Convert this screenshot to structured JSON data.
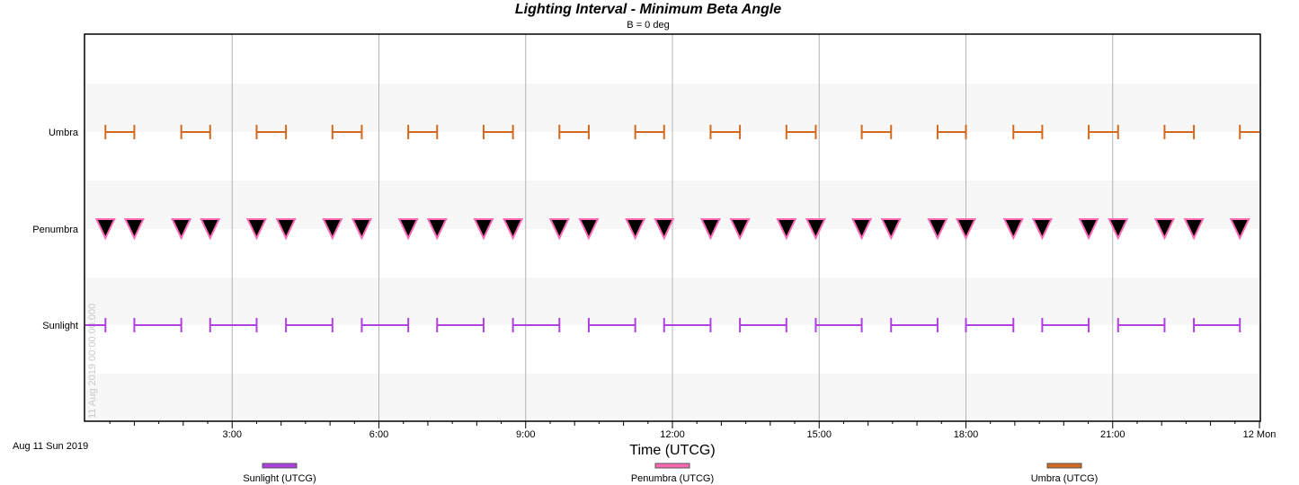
{
  "chart_data": {
    "type": "interval",
    "title": "Lighting Interval - Minimum Beta Angle",
    "subtitle": "B = 0 deg",
    "xlabel": "Time (UTCG)",
    "x_start_label": "Aug 11 Sun 2019",
    "x_end_label": "12 Mon",
    "epoch_label": "11 Aug 2019 00:00:00.000",
    "x_range_hours": [
      0,
      24
    ],
    "x_ticks": [
      {
        "hour": 3,
        "label": "3:00"
      },
      {
        "hour": 6,
        "label": "6:00"
      },
      {
        "hour": 9,
        "label": "9:00"
      },
      {
        "hour": 12,
        "label": "12:00"
      },
      {
        "hour": 15,
        "label": "15:00"
      },
      {
        "hour": 18,
        "label": "18:00"
      },
      {
        "hour": 21,
        "label": "21:00"
      },
      {
        "hour": 24,
        "label": "12 Mon"
      }
    ],
    "rows": [
      "Umbra",
      "Penumbra",
      "Sunlight"
    ],
    "series": [
      {
        "name": "Umbra",
        "legend": "Umbra (UTCG)",
        "color": "#d2691e",
        "intervals": [
          [
            0.41,
            1.0
          ],
          [
            1.96,
            2.55
          ],
          [
            3.5,
            4.1
          ],
          [
            5.05,
            5.65
          ],
          [
            6.6,
            7.19
          ],
          [
            8.14,
            8.74
          ],
          [
            9.69,
            10.29
          ],
          [
            11.24,
            11.83
          ],
          [
            12.78,
            13.38
          ],
          [
            14.33,
            14.93
          ],
          [
            15.87,
            16.47
          ],
          [
            17.42,
            18.0
          ],
          [
            18.97,
            19.56
          ],
          [
            20.51,
            21.11
          ],
          [
            22.06,
            22.66
          ],
          [
            23.6,
            24.0
          ]
        ]
      },
      {
        "name": "Penumbra",
        "legend": "Penumbra (UTCG)",
        "color": "#ff69b4",
        "events": [
          0.41,
          1.0,
          1.96,
          2.55,
          3.5,
          4.1,
          5.05,
          5.65,
          6.6,
          7.19,
          8.14,
          8.74,
          9.69,
          10.29,
          11.24,
          11.83,
          12.78,
          13.38,
          14.33,
          14.93,
          15.87,
          16.47,
          17.42,
          18.0,
          18.97,
          19.56,
          20.51,
          21.11,
          22.06,
          22.66,
          23.6
        ]
      },
      {
        "name": "Sunlight",
        "legend": "Sunlight (UTCG)",
        "color": "#b040e0",
        "intervals": [
          [
            0.0,
            0.41
          ],
          [
            1.0,
            1.96
          ],
          [
            2.55,
            3.5
          ],
          [
            4.1,
            5.05
          ],
          [
            5.65,
            6.6
          ],
          [
            7.19,
            8.14
          ],
          [
            8.74,
            9.69
          ],
          [
            10.29,
            11.24
          ],
          [
            11.83,
            12.78
          ],
          [
            13.38,
            14.33
          ],
          [
            14.93,
            15.87
          ],
          [
            16.47,
            17.42
          ],
          [
            18.0,
            18.97
          ],
          [
            19.56,
            20.51
          ],
          [
            21.11,
            22.06
          ],
          [
            22.66,
            23.6
          ]
        ]
      }
    ],
    "grid": true,
    "legend_position": "bottom"
  }
}
